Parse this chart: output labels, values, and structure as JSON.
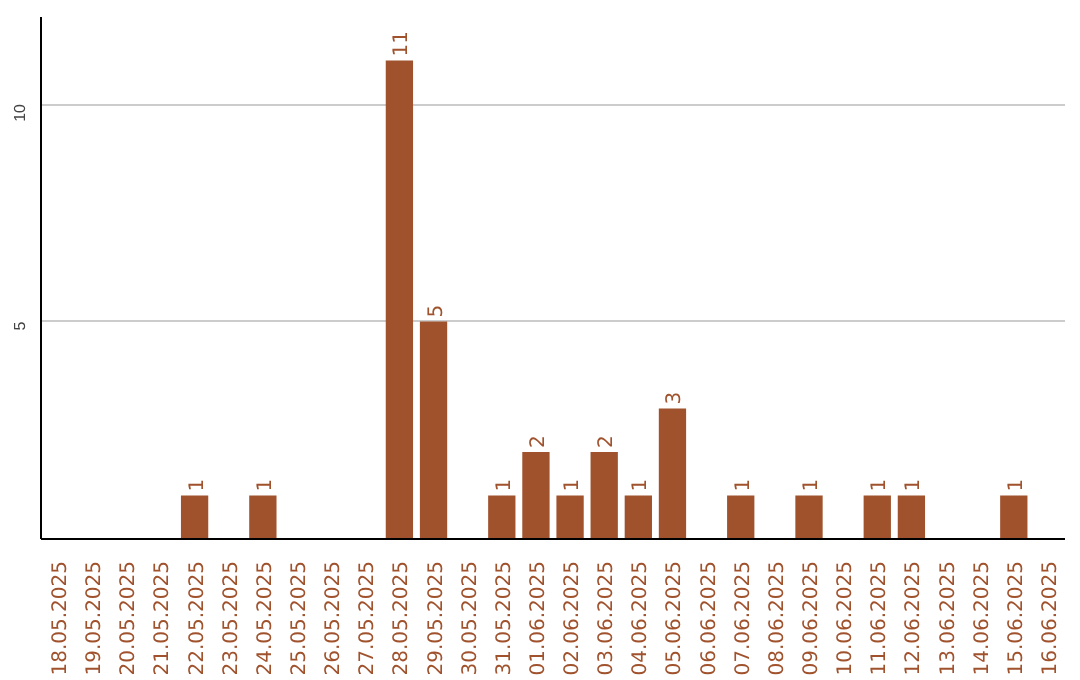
{
  "chart_data": {
    "type": "bar",
    "categories": [
      "18.05.2025",
      "19.05.2025",
      "20.05.2025",
      "21.05.2025",
      "22.05.2025",
      "23.05.2025",
      "24.05.2025",
      "25.05.2025",
      "26.05.2025",
      "27.05.2025",
      "28.05.2025",
      "29.05.2025",
      "30.05.2025",
      "31.05.2025",
      "01.06.2025",
      "02.06.2025",
      "03.06.2025",
      "04.06.2025",
      "05.06.2025",
      "06.06.2025",
      "07.06.2025",
      "08.06.2025",
      "09.06.2025",
      "10.06.2025",
      "11.06.2025",
      "12.06.2025",
      "13.06.2025",
      "14.06.2025",
      "15.06.2025",
      "16.06.2025"
    ],
    "values": [
      0,
      0,
      0,
      0,
      1,
      0,
      1,
      0,
      0,
      0,
      11,
      5,
      0,
      1,
      2,
      1,
      2,
      1,
      3,
      0,
      1,
      0,
      1,
      0,
      1,
      1,
      0,
      0,
      1,
      0
    ],
    "value_labels": [
      null,
      null,
      null,
      null,
      "1",
      null,
      "1",
      null,
      null,
      null,
      "11",
      "5",
      null,
      "1",
      "2",
      "1",
      "2",
      "1",
      "3",
      null,
      "1",
      null,
      "1",
      null,
      "1",
      "1",
      null,
      null,
      "1",
      null
    ],
    "color": "#a0522d",
    "ylim": [
      0,
      12
    ],
    "yticks": [
      5,
      10
    ],
    "grid": "y"
  }
}
